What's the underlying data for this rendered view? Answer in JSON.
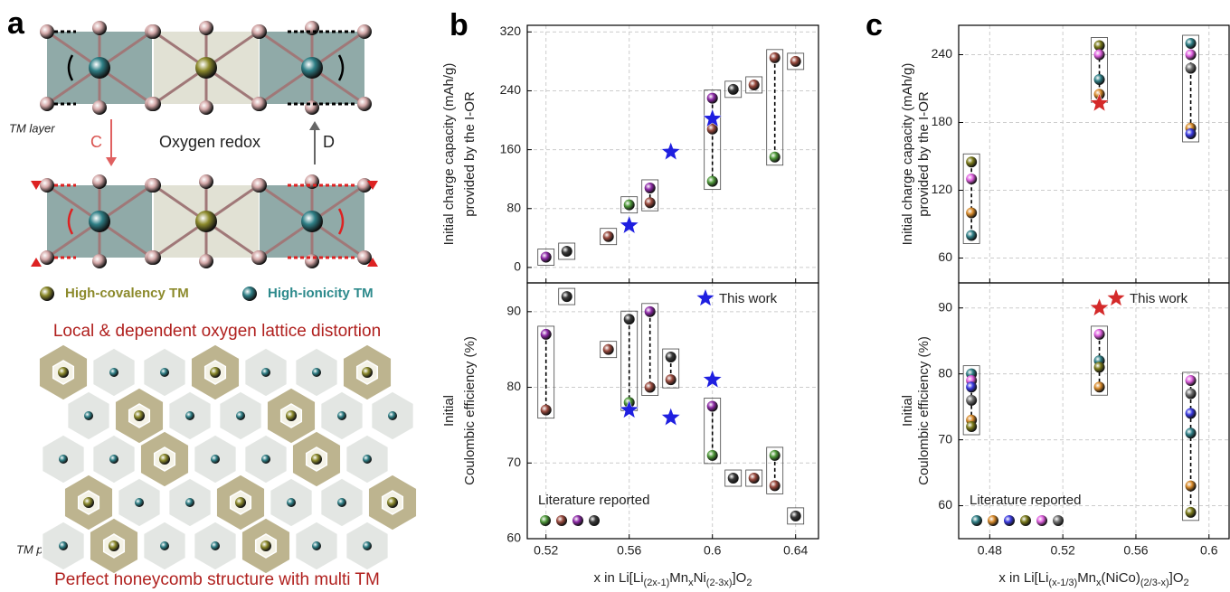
{
  "panel_a": {
    "label": "a",
    "tm_layer": "TM layer",
    "arrow_c": "C",
    "oxygen_redox": "Oxygen redox",
    "arrow_d": "D",
    "legend": [
      "High-covalency TM",
      "High-ionicity TM"
    ],
    "caption_top": "Local & dependent oxygen lattice distortion",
    "tm_plane": "TM plane",
    "caption_bottom": "Perfect honeycomb structure with multi TM"
  },
  "chart_data": [
    {
      "type": "scatter",
      "panel_label": "b",
      "ylabel": [
        "Initial charge capacity (mAh/g)",
        "provided by the I-OR"
      ],
      "xlim": [
        0.511,
        0.651
      ],
      "xticks": [
        0.52,
        0.56,
        0.6,
        0.64
      ],
      "ylim": [
        -21,
        329
      ],
      "yticks": [
        0,
        80,
        160,
        240,
        320
      ],
      "grid": true,
      "series": [
        {
          "x": [
            0.52,
            0.53,
            0.55,
            0.56,
            0.57,
            0.57,
            0.6,
            0.6,
            0.6,
            0.61,
            0.62,
            0.63,
            0.63,
            0.64
          ],
          "values": [
            14,
            22,
            42,
            85,
            108,
            88,
            230,
            188,
            117,
            242,
            248,
            285,
            150,
            280
          ],
          "colors": [
            "#8e2aa8",
            "#3a3a3a",
            "#9a4a3e",
            "#4f9a3a",
            "#8e2aa8",
            "#9a4a3e",
            "#8e2aa8",
            "#9a4a3e",
            "#4f9a3a",
            "#3a3a3a",
            "#9a4a3e",
            "#9a4a3e",
            "#4f9a3a",
            "#9a4a3e"
          ]
        },
        {
          "marker": "star",
          "color": "#1f1fe0",
          "x": [
            0.56,
            0.58,
            0.6
          ],
          "values": [
            57,
            157,
            202
          ]
        }
      ]
    },
    {
      "type": "scatter",
      "ylabel": [
        "Initial",
        "Coulombic efficiency (%)"
      ],
      "xlabel": [
        "x in Li[Li",
        "(2x-1)",
        "Mn",
        "x",
        "Ni",
        "(2-3x)",
        "]O",
        "2"
      ],
      "xlim": [
        0.511,
        0.651
      ],
      "xticks": [
        0.52,
        0.56,
        0.6,
        0.64
      ],
      "ylim": [
        60,
        93.8
      ],
      "yticks": [
        60,
        70,
        80,
        90
      ],
      "grid": true,
      "series": [
        {
          "name": "Literature reported",
          "legend_loc": "lower left",
          "legend_colors": [
            "#4f9a3a",
            "#9a4a3e",
            "#8e2aa8",
            "#3a3a3a"
          ],
          "x": [
            0.52,
            0.52,
            0.53,
            0.55,
            0.56,
            0.56,
            0.57,
            0.57,
            0.58,
            0.58,
            0.6,
            0.6,
            0.61,
            0.62,
            0.63,
            0.63,
            0.64
          ],
          "values": [
            87,
            77,
            92,
            85,
            89,
            78,
            90,
            80,
            84,
            81,
            77.5,
            71,
            68,
            68,
            71,
            67,
            63
          ],
          "colors": [
            "#8e2aa8",
            "#9a4a3e",
            "#3a3a3a",
            "#9a4a3e",
            "#3a3a3a",
            "#4f9a3a",
            "#8e2aa8",
            "#9a4a3e",
            "#3a3a3a",
            "#9a4a3e",
            "#8e2aa8",
            "#4f9a3a",
            "#3a3a3a",
            "#9a4a3e",
            "#4f9a3a",
            "#9a4a3e",
            "#3a3a3a"
          ]
        },
        {
          "name": "This work",
          "legend_loc": "upper right",
          "marker": "star",
          "color": "#1f1fe0",
          "x": [
            0.56,
            0.58,
            0.6
          ],
          "values": [
            77,
            76,
            81
          ]
        }
      ]
    },
    {
      "type": "scatter",
      "panel_label": "c",
      "ylabel": [
        "Initial charge capacity (mAh/g)",
        "provided by the I-OR"
      ],
      "xlim": [
        0.463,
        0.611
      ],
      "xticks": [
        0.48,
        0.52,
        0.56,
        0.6
      ],
      "ylim": [
        38,
        266
      ],
      "yticks": [
        60,
        120,
        180,
        240
      ],
      "grid": true,
      "series": [
        {
          "x": [
            0.47,
            0.47,
            0.47,
            0.47,
            0.54,
            0.54,
            0.54,
            0.54,
            0.59,
            0.59,
            0.59,
            0.59,
            0.59
          ],
          "values": [
            145,
            130,
            100,
            80,
            248,
            240,
            218,
            205,
            250,
            240,
            228,
            175,
            170
          ],
          "colors": [
            "#7a7a1a",
            "#e060e0",
            "#d88a2a",
            "#2f7f86",
            "#7a7a1a",
            "#e060e0",
            "#2f7f86",
            "#d88a2a",
            "#2f7f86",
            "#e060e0",
            "#707070",
            "#d88a2a",
            "#3a3ae0"
          ]
        },
        {
          "marker": "star",
          "color": "#d42a2a",
          "x": [
            0.54
          ],
          "values": [
            197
          ]
        }
      ]
    },
    {
      "type": "scatter",
      "ylabel": [
        "Initial",
        "Coulombic efficiency (%)"
      ],
      "xlabel": [
        "x in Li[Li",
        "(x-1/3)",
        "Mn",
        "x",
        "(NiCo)",
        "(2/3-x)",
        "]O",
        "2"
      ],
      "xlim": [
        0.463,
        0.611
      ],
      "xticks": [
        0.48,
        0.52,
        0.56,
        0.6
      ],
      "ylim": [
        55,
        93.8
      ],
      "yticks": [
        60,
        70,
        80,
        90
      ],
      "grid": true,
      "series": [
        {
          "name": "Literature reported",
          "legend_loc": "lower left",
          "legend_colors": [
            "#2f7f86",
            "#d88a2a",
            "#3a3ae0",
            "#7a7a1a",
            "#e060e0",
            "#707070"
          ],
          "x": [
            0.47,
            0.47,
            0.47,
            0.47,
            0.47,
            0.47,
            0.54,
            0.54,
            0.54,
            0.54,
            0.59,
            0.59,
            0.59,
            0.59,
            0.59,
            0.59
          ],
          "values": [
            80,
            79,
            78,
            76,
            73,
            72,
            86,
            82,
            81,
            78,
            79,
            77,
            74,
            71,
            63,
            59
          ],
          "colors": [
            "#2f7f86",
            "#e060e0",
            "#3a3ae0",
            "#707070",
            "#d88a2a",
            "#7a7a1a",
            "#e060e0",
            "#2f7f86",
            "#7a7a1a",
            "#d88a2a",
            "#e060e0",
            "#707070",
            "#3a3ae0",
            "#2f7f86",
            "#d88a2a",
            "#7a7a1a"
          ]
        },
        {
          "name": "This work",
          "legend_loc": "upper right",
          "marker": "star",
          "color": "#d42a2a",
          "x": [
            0.54
          ],
          "values": [
            90
          ]
        }
      ]
    }
  ]
}
